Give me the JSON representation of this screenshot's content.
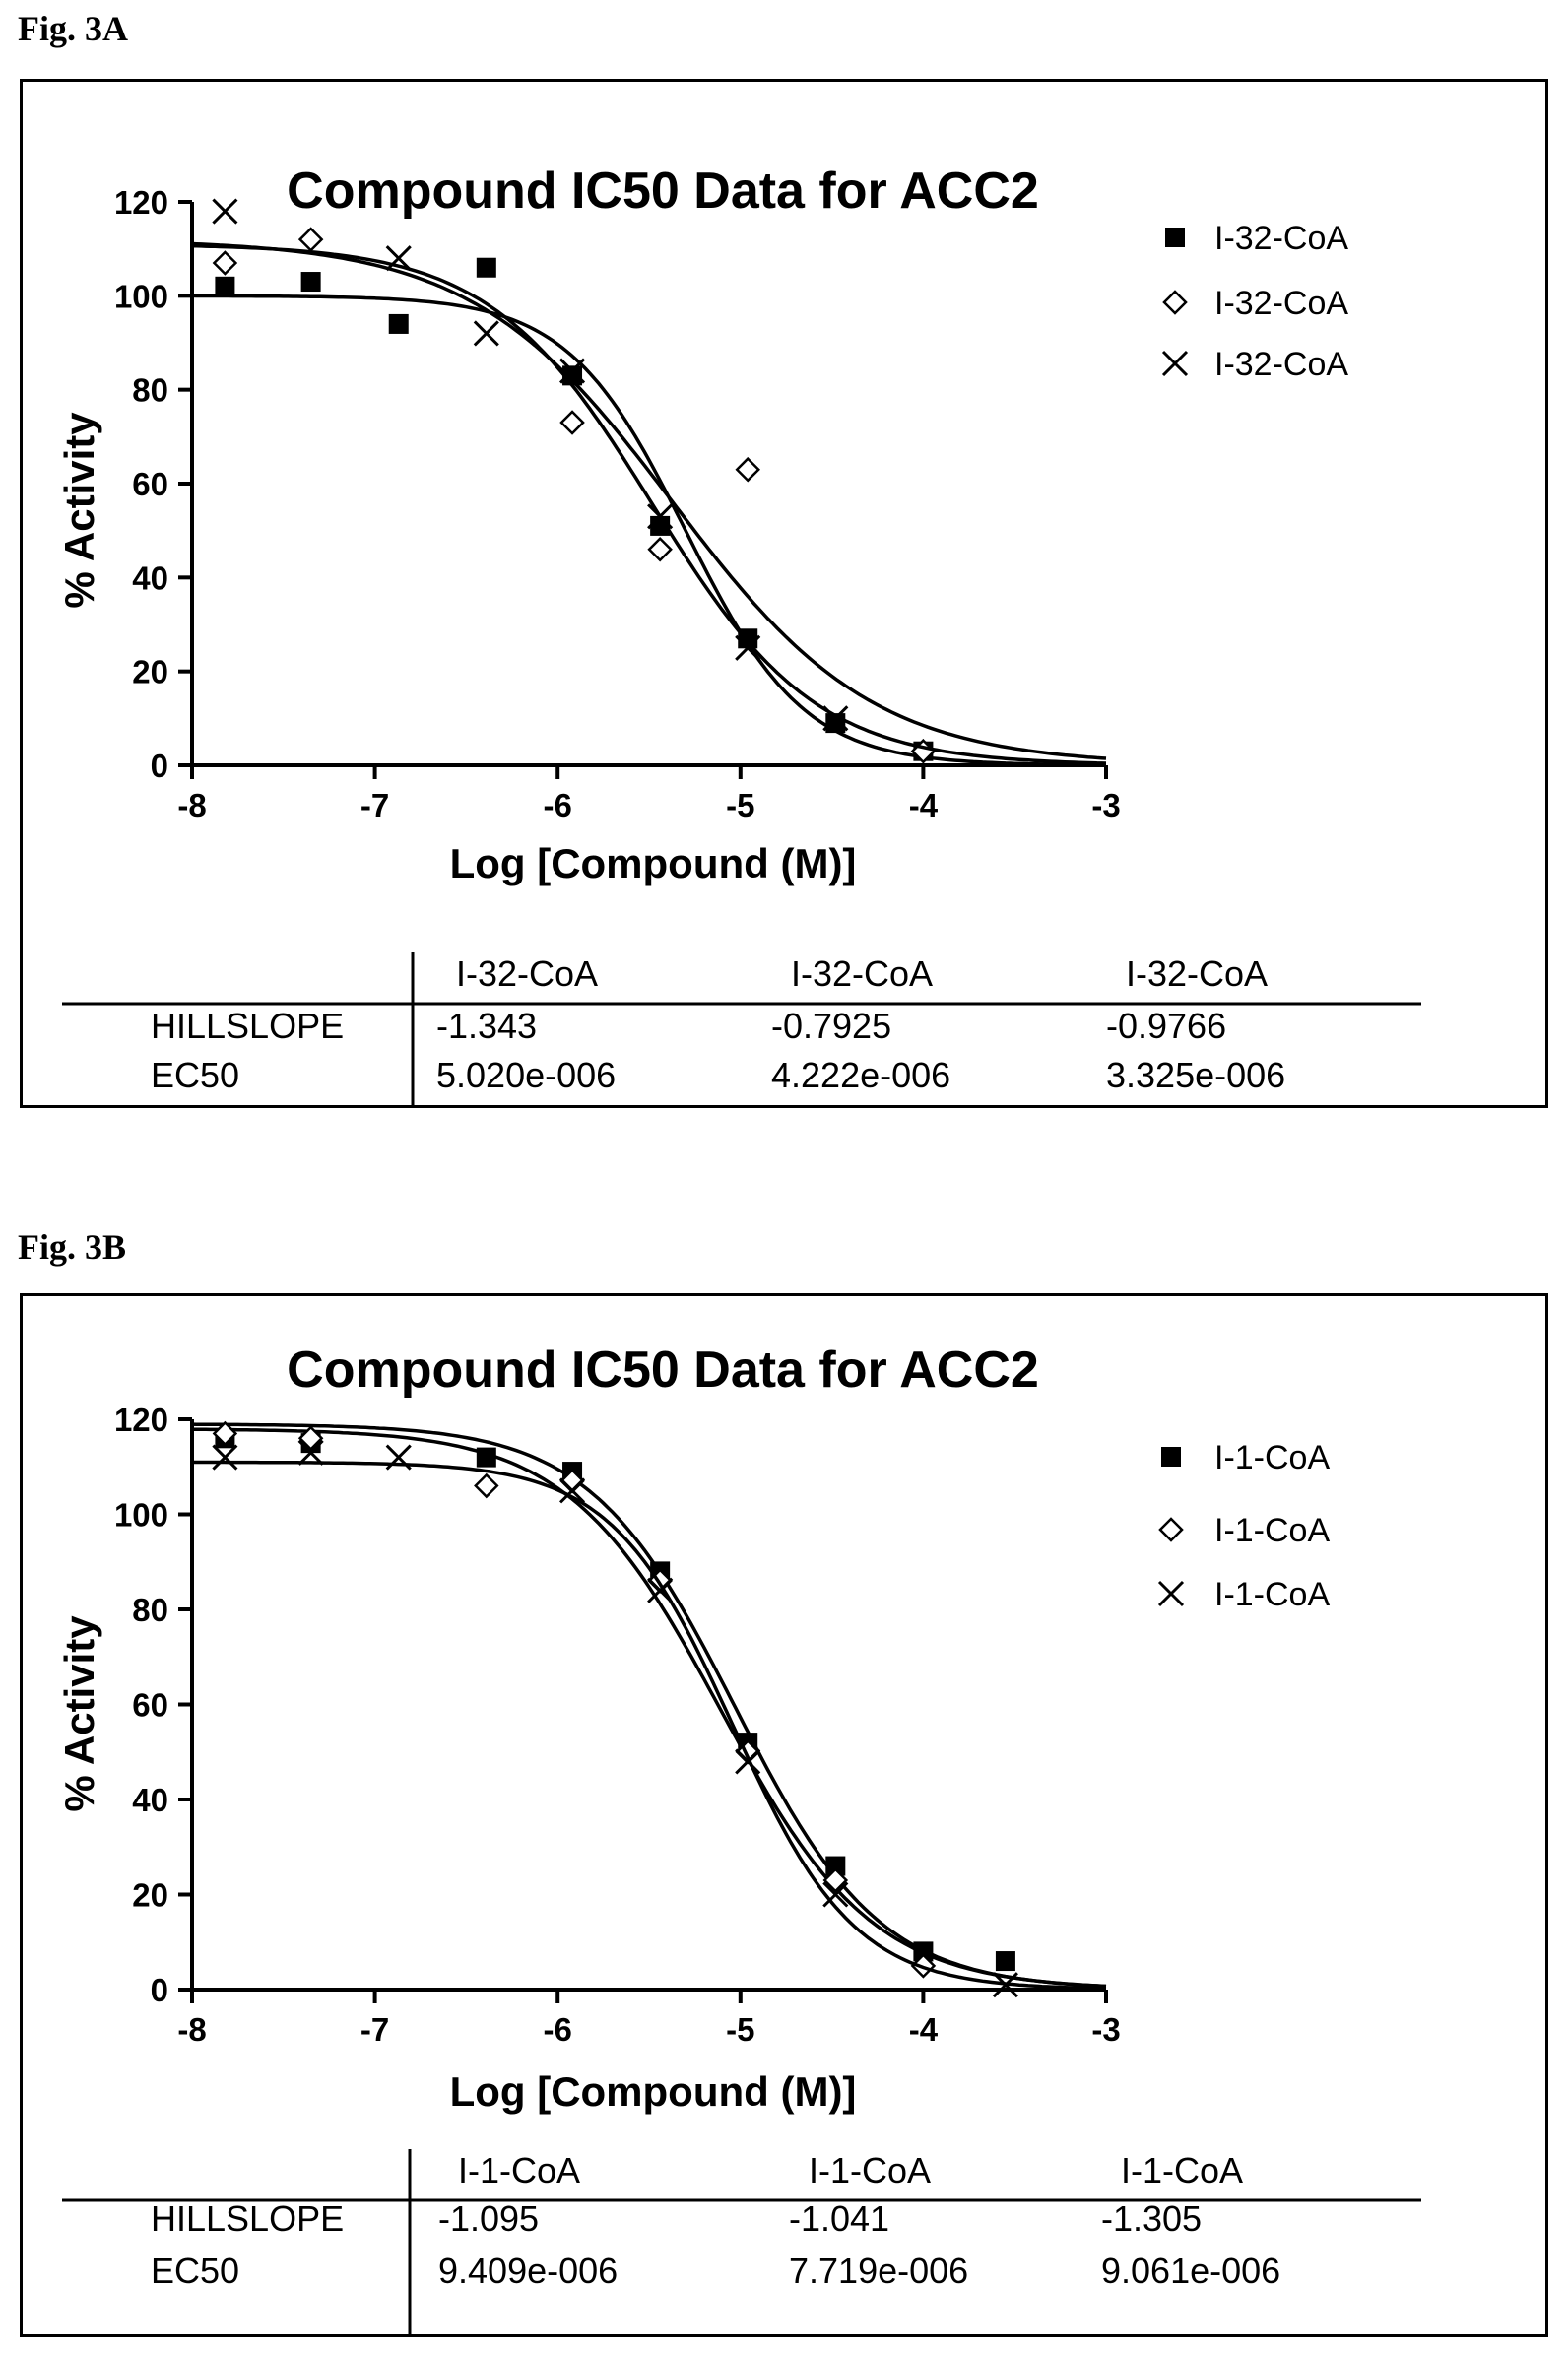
{
  "figures": [
    {
      "label": "Fig. 3A",
      "table": {
        "series_headers": [
          "I-32-CoA",
          "I-32-CoA",
          "I-32-CoA"
        ],
        "rows": [
          {
            "name": "HILLSLOPE",
            "values": [
              "-1.343",
              "-0.7925",
              "-0.9766"
            ]
          },
          {
            "name": "EC50",
            "values": [
              "5.020e-006",
              "4.222e-006",
              "3.325e-006"
            ]
          }
        ]
      }
    },
    {
      "label": "Fig. 3B",
      "table": {
        "series_headers": [
          "I-1-CoA",
          "I-1-CoA",
          "I-1-CoA"
        ],
        "rows": [
          {
            "name": "HILLSLOPE",
            "values": [
              "-1.095",
              "-1.041",
              "-1.305"
            ]
          },
          {
            "name": "EC50",
            "values": [
              "9.409e-006",
              "7.719e-006",
              "9.061e-006"
            ]
          }
        ]
      }
    }
  ],
  "chart_data": [
    {
      "type": "scatter",
      "title": "Compound IC50 Data for ACC2",
      "xlabel": "Log [Compound (M)]",
      "ylabel": "% Activity",
      "xlim": [
        -8,
        -3
      ],
      "ylim": [
        0,
        120
      ],
      "xticks": [
        "-8",
        "-7",
        "-6",
        "-5",
        "-4",
        "-3"
      ],
      "yticks": [
        "0",
        "20",
        "40",
        "60",
        "80",
        "100",
        "120"
      ],
      "legend_position": "top-right",
      "series": [
        {
          "name": "I-32-CoA",
          "marker": "square",
          "x": [
            -7.82,
            -7.35,
            -6.87,
            -6.39,
            -5.92,
            -5.44,
            -4.96,
            -4.48,
            -4.0
          ],
          "y": [
            102,
            103,
            94,
            106,
            83,
            51,
            27,
            9,
            3
          ],
          "fit": {
            "top": 100,
            "bottom": 0,
            "log_ec50": -5.3,
            "hillslope": -1.343
          }
        },
        {
          "name": "I-32-CoA",
          "marker": "diamond",
          "x": [
            -7.82,
            -7.35,
            -5.92,
            -5.44,
            -4.96,
            -4.0
          ],
          "y": [
            107,
            112,
            73,
            46,
            63,
            3
          ],
          "fit": {
            "top": 112,
            "bottom": 0,
            "log_ec50": -5.37,
            "hillslope": -0.7925
          }
        },
        {
          "name": "I-32-CoA",
          "marker": "x",
          "x": [
            -7.82,
            -6.87,
            -6.39,
            -5.92,
            -5.44,
            -4.96,
            -4.48
          ],
          "y": [
            118,
            108,
            92,
            84,
            53,
            25,
            10
          ],
          "fit": {
            "top": 111,
            "bottom": 0,
            "log_ec50": -5.48,
            "hillslope": -0.9766
          }
        }
      ]
    },
    {
      "type": "scatter",
      "title": "Compound IC50 Data for ACC2",
      "xlabel": "Log [Compound (M)]",
      "ylabel": "% Activity",
      "xlim": [
        -8,
        -3
      ],
      "ylim": [
        0,
        120
      ],
      "xticks": [
        "-8",
        "-7",
        "-6",
        "-5",
        "-4",
        "-3"
      ],
      "yticks": [
        "0",
        "20",
        "40",
        "60",
        "80",
        "100",
        "120"
      ],
      "legend_position": "top-right",
      "series": [
        {
          "name": "I-1-CoA",
          "marker": "square",
          "x": [
            -7.82,
            -7.35,
            -6.39,
            -5.92,
            -5.44,
            -4.96,
            -4.48,
            -4.0,
            -3.55
          ],
          "y": [
            116,
            115,
            112,
            109,
            88,
            52,
            26,
            8,
            6
          ],
          "fit": {
            "top": 119,
            "bottom": 0,
            "log_ec50": -5.03,
            "hillslope": -1.095
          }
        },
        {
          "name": "I-1-CoA",
          "marker": "diamond",
          "x": [
            -7.82,
            -7.35,
            -6.39,
            -5.92,
            -5.44,
            -4.96,
            -4.48,
            -4.0
          ],
          "y": [
            117,
            116,
            106,
            107,
            86,
            50,
            23,
            5
          ],
          "fit": {
            "top": 118,
            "bottom": 0,
            "log_ec50": -5.11,
            "hillslope": -1.041
          }
        },
        {
          "name": "I-1-CoA",
          "marker": "x",
          "x": [
            -7.82,
            -7.35,
            -6.87,
            -5.92,
            -5.44,
            -4.96,
            -4.48,
            -3.55
          ],
          "y": [
            112,
            113,
            112,
            105,
            84,
            48,
            20,
            1
          ],
          "fit": {
            "top": 111,
            "bottom": 0,
            "log_ec50": -5.04,
            "hillslope": -1.305
          }
        }
      ]
    }
  ]
}
